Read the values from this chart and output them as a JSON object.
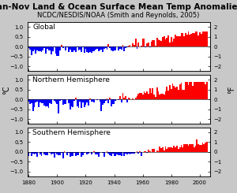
{
  "title": "Jan-Nov Land & Ocean Surface Mean Temp Anomalies",
  "subtitle": "NCDC/NESDIS/NOAA (Smith and Reynolds, 2005)",
  "ylabel_left": "°C",
  "ylabel_right": "°F",
  "panels": [
    "Global",
    "Northern Hemisphere",
    "Southern Hemisphere"
  ],
  "xlim": [
    1879,
    2007
  ],
  "ylim_left": [
    -1.25,
    1.25
  ],
  "ylim_right": [
    -2.5,
    2.5
  ],
  "yticks_left": [
    -1.0,
    -0.5,
    0.0,
    0.5,
    1.0
  ],
  "yticks_right": [
    -2.0,
    -1.0,
    0.0,
    1.0,
    2.0
  ],
  "xticks": [
    1880,
    1900,
    1920,
    1940,
    1960,
    1980,
    2000
  ],
  "color_positive": "#FF0000",
  "color_negative": "#0000FF",
  "background_color": "#FFFFFF",
  "fig_bg": "#C8C8C8",
  "title_fontsize": 7.5,
  "subtitle_fontsize": 6.0,
  "label_fontsize": 7.0,
  "tick_fontsize": 5.0,
  "panel_label_fontsize": 6.5
}
